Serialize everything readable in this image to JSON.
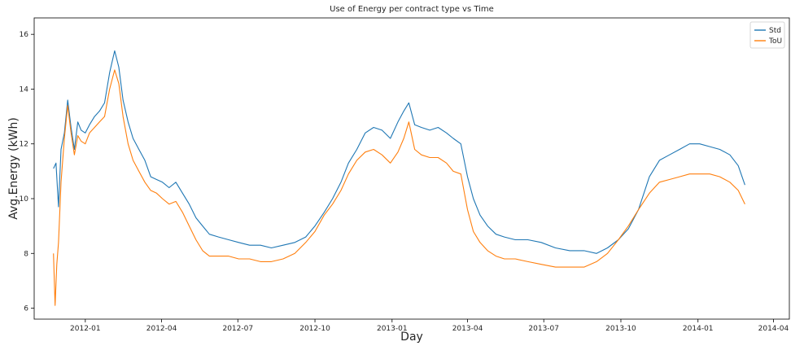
{
  "chart_data": {
    "type": "line",
    "title": "Use of Energy per contract type vs Time",
    "xlabel": "Day",
    "ylabel": "Avg.Energy (kWh)",
    "xlim": [
      "2011-11-01",
      "2014-04-20"
    ],
    "ylim": [
      5.6,
      16.6
    ],
    "x_ticks": [
      "2012-01",
      "2012-04",
      "2012-07",
      "2012-10",
      "2013-01",
      "2013-04",
      "2013-07",
      "2013-10",
      "2014-01",
      "2014-04"
    ],
    "y_ticks": [
      6,
      8,
      10,
      12,
      14,
      16
    ],
    "grid": false,
    "legend_position": "top-right",
    "colors": {
      "Std": "#1f77b4",
      "ToU": "#ff7f0e"
    },
    "series": [
      {
        "name": "Std",
        "x": [
          "2011-11-24",
          "2011-11-27",
          "2011-11-30",
          "2011-12-03",
          "2011-12-07",
          "2011-12-11",
          "2011-12-15",
          "2011-12-19",
          "2011-12-23",
          "2011-12-27",
          "2012-01-01",
          "2012-01-06",
          "2012-01-12",
          "2012-01-18",
          "2012-01-24",
          "2012-01-30",
          "2012-02-05",
          "2012-02-10",
          "2012-02-15",
          "2012-02-21",
          "2012-02-27",
          "2012-03-05",
          "2012-03-12",
          "2012-03-19",
          "2012-03-26",
          "2012-04-02",
          "2012-04-10",
          "2012-04-18",
          "2012-04-26",
          "2012-05-04",
          "2012-05-12",
          "2012-05-20",
          "2012-05-28",
          "2012-06-08",
          "2012-06-20",
          "2012-07-02",
          "2012-07-15",
          "2012-07-28",
          "2012-08-10",
          "2012-08-24",
          "2012-09-07",
          "2012-09-20",
          "2012-10-01",
          "2012-10-12",
          "2012-10-22",
          "2012-11-01",
          "2012-11-10",
          "2012-11-20",
          "2012-11-30",
          "2012-12-10",
          "2012-12-20",
          "2012-12-30",
          "2013-01-08",
          "2013-01-15",
          "2013-01-21",
          "2013-01-28",
          "2013-02-05",
          "2013-02-15",
          "2013-02-25",
          "2013-03-07",
          "2013-03-15",
          "2013-03-24",
          "2013-04-01",
          "2013-04-08",
          "2013-04-16",
          "2013-04-25",
          "2013-05-05",
          "2013-05-15",
          "2013-05-28",
          "2013-06-12",
          "2013-06-28",
          "2013-07-15",
          "2013-08-01",
          "2013-08-18",
          "2013-09-02",
          "2013-09-15",
          "2013-09-28",
          "2013-10-10",
          "2013-10-22",
          "2013-11-04",
          "2013-11-16",
          "2013-11-28",
          "2013-12-10",
          "2013-12-22",
          "2014-01-03",
          "2014-01-15",
          "2014-01-27",
          "2014-02-08",
          "2014-02-18",
          "2014-02-26"
        ],
        "values": [
          11.1,
          11.3,
          9.7,
          11.8,
          12.4,
          13.6,
          12.6,
          11.8,
          12.8,
          12.5,
          12.4,
          12.7,
          13.0,
          13.2,
          13.5,
          14.6,
          15.4,
          14.8,
          13.6,
          12.8,
          12.2,
          11.8,
          11.4,
          10.8,
          10.7,
          10.6,
          10.4,
          10.6,
          10.2,
          9.8,
          9.3,
          9.0,
          8.7,
          8.6,
          8.5,
          8.4,
          8.3,
          8.3,
          8.2,
          8.3,
          8.4,
          8.6,
          9.0,
          9.5,
          10.0,
          10.6,
          11.3,
          11.8,
          12.4,
          12.6,
          12.5,
          12.2,
          12.8,
          13.2,
          13.5,
          12.7,
          12.6,
          12.5,
          12.6,
          12.4,
          12.2,
          12.0,
          10.8,
          10.0,
          9.4,
          9.0,
          8.7,
          8.6,
          8.5,
          8.5,
          8.4,
          8.2,
          8.1,
          8.1,
          8.0,
          8.2,
          8.5,
          8.9,
          9.6,
          10.8,
          11.4,
          11.6,
          11.8,
          12.0,
          12.0,
          11.9,
          11.8,
          11.6,
          11.2,
          10.5
        ]
      },
      {
        "name": "ToU",
        "x": [
          "2011-11-24",
          "2011-11-26",
          "2011-11-28",
          "2011-11-30",
          "2011-12-03",
          "2011-12-07",
          "2011-12-11",
          "2011-12-15",
          "2011-12-19",
          "2011-12-23",
          "2011-12-27",
          "2012-01-01",
          "2012-01-06",
          "2012-01-12",
          "2012-01-18",
          "2012-01-24",
          "2012-01-30",
          "2012-02-05",
          "2012-02-10",
          "2012-02-15",
          "2012-02-21",
          "2012-02-27",
          "2012-03-05",
          "2012-03-12",
          "2012-03-19",
          "2012-03-26",
          "2012-04-02",
          "2012-04-10",
          "2012-04-18",
          "2012-04-26",
          "2012-05-04",
          "2012-05-12",
          "2012-05-20",
          "2012-05-28",
          "2012-06-08",
          "2012-06-20",
          "2012-07-02",
          "2012-07-15",
          "2012-07-28",
          "2012-08-10",
          "2012-08-24",
          "2012-09-07",
          "2012-09-20",
          "2012-10-01",
          "2012-10-12",
          "2012-10-22",
          "2012-11-01",
          "2012-11-10",
          "2012-11-20",
          "2012-11-30",
          "2012-12-10",
          "2012-12-20",
          "2012-12-30",
          "2013-01-08",
          "2013-01-15",
          "2013-01-21",
          "2013-01-28",
          "2013-02-05",
          "2013-02-15",
          "2013-02-25",
          "2013-03-07",
          "2013-03-15",
          "2013-03-24",
          "2013-04-01",
          "2013-04-08",
          "2013-04-16",
          "2013-04-25",
          "2013-05-05",
          "2013-05-15",
          "2013-05-28",
          "2013-06-12",
          "2013-06-28",
          "2013-07-15",
          "2013-08-01",
          "2013-08-18",
          "2013-09-02",
          "2013-09-15",
          "2013-09-28",
          "2013-10-10",
          "2013-10-22",
          "2013-11-04",
          "2013-11-16",
          "2013-11-28",
          "2013-12-10",
          "2013-12-22",
          "2014-01-03",
          "2014-01-15",
          "2014-01-27",
          "2014-02-08",
          "2014-02-18",
          "2014-02-26"
        ],
        "values": [
          8.0,
          6.1,
          7.6,
          8.4,
          10.6,
          12.2,
          13.4,
          12.4,
          11.6,
          12.3,
          12.1,
          12.0,
          12.4,
          12.6,
          12.8,
          13.0,
          14.0,
          14.7,
          14.2,
          13.0,
          12.0,
          11.4,
          11.0,
          10.6,
          10.3,
          10.2,
          10.0,
          9.8,
          9.9,
          9.5,
          9.0,
          8.5,
          8.1,
          7.9,
          7.9,
          7.9,
          7.8,
          7.8,
          7.7,
          7.7,
          7.8,
          8.0,
          8.4,
          8.8,
          9.4,
          9.8,
          10.3,
          10.9,
          11.4,
          11.7,
          11.8,
          11.6,
          11.3,
          11.7,
          12.2,
          12.8,
          11.8,
          11.6,
          11.5,
          11.5,
          11.3,
          11.0,
          10.9,
          9.6,
          8.8,
          8.4,
          8.1,
          7.9,
          7.8,
          7.8,
          7.7,
          7.6,
          7.5,
          7.5,
          7.5,
          7.7,
          8.0,
          8.5,
          9.0,
          9.6,
          10.2,
          10.6,
          10.7,
          10.8,
          10.9,
          10.9,
          10.9,
          10.8,
          10.6,
          10.3,
          9.8
        ]
      }
    ]
  }
}
